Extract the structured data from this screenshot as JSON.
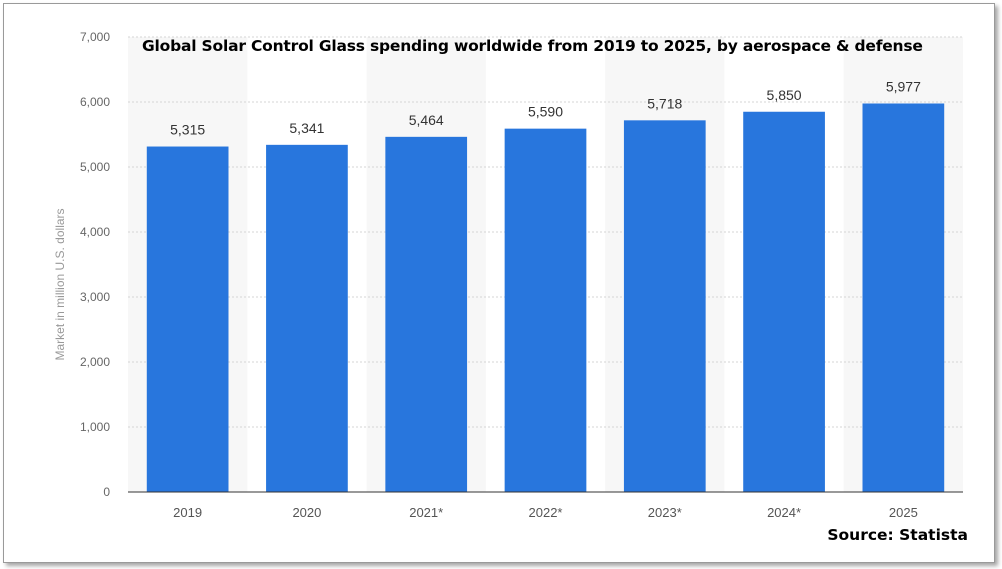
{
  "chart_data": {
    "type": "bar",
    "title": "Global Solar Control Glass spending worldwide from 2019 to 2025, by aerospace & defense",
    "ylabel": "Market in million U.S. dollars",
    "xlabel": "",
    "categories": [
      "2019",
      "2020",
      "2021*",
      "2022*",
      "2023*",
      "2024*",
      "2025"
    ],
    "values": [
      5315,
      5341,
      5464,
      5590,
      5718,
      5850,
      5977
    ],
    "value_labels": [
      "5,315",
      "5,341",
      "5,464",
      "5,590",
      "5,718",
      "5,850",
      "5,977"
    ],
    "ylim": [
      0,
      7000
    ],
    "yticks": [
      0,
      1000,
      2000,
      3000,
      4000,
      5000,
      6000,
      7000
    ],
    "ytick_labels": [
      "0",
      "1,000",
      "2,000",
      "3,000",
      "4,000",
      "5,000",
      "6,000",
      "7,000"
    ],
    "grid": true,
    "legend": "none",
    "bar_color": "#2876dd",
    "source": "Source: Statista"
  }
}
